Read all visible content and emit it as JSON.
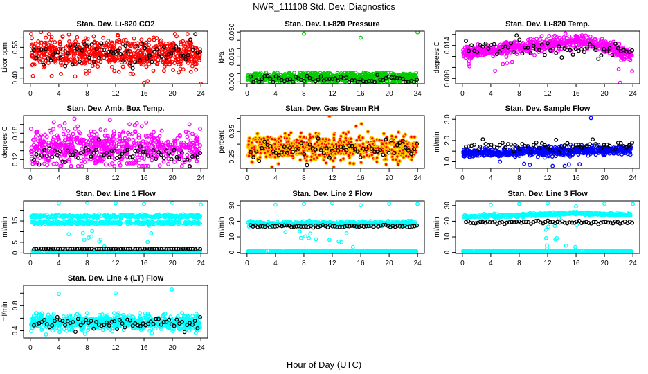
{
  "title": "NWR_111108 Std. Dev. Diagnostics",
  "xlabel": "Hour of Day (UTC)",
  "chart_data": [
    {
      "type": "scatter",
      "title": "Stan. Dev. Li-820 CO2",
      "ylabel": "Licor ppm",
      "xlim": [
        -0.96,
        24.96
      ],
      "xticks": [
        0,
        4,
        8,
        12,
        16,
        20,
        24
      ],
      "xticklabels": [
        "0",
        "4",
        "8",
        "12",
        "16",
        "20",
        "24"
      ],
      "ylim": [
        0.372,
        0.629
      ],
      "yticks": [
        0.4,
        0.45,
        0.5,
        0.55,
        0.6
      ],
      "yticklabels": [
        "0.40",
        "",
        "",
        "0.55",
        ""
      ],
      "color": "#ff0000",
      "band": {
        "mean": 0.52,
        "sd": 0.035,
        "n": 650,
        "min": 0.41,
        "max": 0.615
      },
      "hourly": {
        "mean": 0.52,
        "sd": 0.03,
        "n": 70
      },
      "outliers": [
        [
          1.5,
          0.625
        ],
        [
          3,
          0.41
        ],
        [
          4.3,
          0.42
        ],
        [
          6.3,
          0.408
        ],
        [
          7.9,
          0.42
        ],
        [
          12.3,
          0.61
        ],
        [
          16,
          0.376
        ],
        [
          16.5,
          0.385
        ],
        [
          24,
          0.372
        ]
      ]
    },
    {
      "type": "scatter",
      "title": "Stan. Dev. Li-820 Pressure",
      "ylabel": "kPa",
      "xlim": [
        -0.96,
        24.96
      ],
      "xticks": [
        0,
        4,
        8,
        12,
        16,
        20,
        24
      ],
      "xticklabels": [
        "0",
        "4",
        "8",
        "12",
        "16",
        "20",
        "24"
      ],
      "ylim": [
        -0.0011,
        0.0305
      ],
      "yticks": [
        0,
        0.005,
        0.01,
        0.015,
        0.02,
        0.025,
        0.03
      ],
      "yticklabels": [
        "0.000",
        "",
        "",
        "0.015",
        "",
        "",
        "0.030"
      ],
      "color": "#00cc00",
      "band": {
        "mean": 0.0025,
        "sd": 0.0017,
        "n": 650,
        "min": 0,
        "max": 0.0055
      },
      "hourly": {
        "mean": 0.0015,
        "sd": 0.0013,
        "n": 60,
        "min": 0,
        "max": 0.005
      },
      "outliers": [
        [
          8,
          0.029
        ],
        [
          16,
          0.0265
        ],
        [
          24,
          0.0298
        ]
      ]
    },
    {
      "type": "scatter",
      "title": "Stan. Dev. Li-820 Temp.",
      "ylabel": "degrees C",
      "xlim": [
        -0.96,
        24.96
      ],
      "xticks": [
        0,
        4,
        8,
        12,
        16,
        20,
        24
      ],
      "xticklabels": [
        "0",
        "4",
        "8",
        "12",
        "16",
        "20",
        "24"
      ],
      "ylim": [
        0.00703,
        0.0166
      ],
      "yticks": [
        0.008,
        0.01,
        0.012,
        0.014,
        0.016
      ],
      "yticklabels": [
        "0.008",
        "",
        "",
        "0.014",
        ""
      ],
      "color": "#ff00ff",
      "band": {
        "mean_by_hour": [
          0.0128,
          0.0126,
          0.0128,
          0.013,
          0.013,
          0.0132,
          0.0134,
          0.0135,
          0.0137,
          0.0138,
          0.014,
          0.0141,
          0.0142,
          0.0143,
          0.0145,
          0.0146,
          0.0148,
          0.0148,
          0.0145,
          0.014,
          0.0138,
          0.0132,
          0.0128,
          0.0125,
          0.0118
        ],
        "sd": 0.0006,
        "n": 650
      },
      "hourly": {
        "mean_by_hour": [
          0.0135,
          0.0134,
          0.0134,
          0.0133,
          0.0128,
          0.0125,
          0.0126,
          0.0132,
          0.0136,
          0.0136,
          0.0138,
          0.014,
          0.0142,
          0.0141,
          0.0143,
          0.0138,
          0.014,
          0.0143,
          0.0136,
          0.0137,
          0.0135,
          0.013,
          0.0122,
          0.0115,
          0.011
        ],
        "sd": 0.0005,
        "n": 60
      },
      "outliers": [
        [
          1,
          0.0102
        ],
        [
          4.6,
          0.0094
        ],
        [
          5.7,
          0.0106
        ],
        [
          6.3,
          0.0108
        ],
        [
          7,
          0.011
        ],
        [
          22.2,
          0.0072
        ],
        [
          22,
          0.0097
        ],
        [
          23.9,
          0.0093
        ]
      ]
    },
    {
      "type": "scatter",
      "title": "Stan. Dev. Amb. Box Temp.",
      "ylabel": "degrees C",
      "xlim": [
        -0.96,
        24.96
      ],
      "xticks": [
        0,
        4,
        8,
        12,
        16,
        20,
        24
      ],
      "xticklabels": [
        "0",
        "4",
        "8",
        "12",
        "16",
        "20",
        "24"
      ],
      "ylim": [
        0.1,
        0.22
      ],
      "yticks": [
        0.12,
        0.14,
        0.16,
        0.18,
        0.2
      ],
      "yticklabels": [
        "0.12",
        "",
        "",
        "0.18",
        ""
      ],
      "color": "#ff00ff",
      "band": {
        "mean": 0.148,
        "sd": 0.02,
        "n": 650,
        "min": 0.105,
        "max": 0.21
      },
      "hourly": {
        "mean": 0.13,
        "sd": 0.01,
        "n": 65
      },
      "outliers": [
        [
          0.1,
          0.19
        ],
        [
          3.3,
          0.205
        ],
        [
          6.2,
          0.213
        ],
        [
          11.2,
          0.21
        ],
        [
          15,
          0.203
        ]
      ]
    },
    {
      "type": "scatter",
      "title": "Stan. Dev. Gas Stream RH",
      "ylabel": "percent",
      "xlim": [
        -0.96,
        24.96
      ],
      "xticks": [
        0,
        4,
        8,
        12,
        16,
        20,
        24
      ],
      "xticklabels": [
        "0",
        "4",
        "8",
        "12",
        "16",
        "20",
        "24"
      ],
      "ylim": [
        0.205,
        0.412
      ],
      "yticks": [
        0.25,
        0.3,
        0.35,
        0.4
      ],
      "yticklabels": [
        "0.25",
        "",
        "0.35",
        ""
      ],
      "color": "#ffcc00",
      "fill": "#ff0000",
      "band": {
        "mean": 0.285,
        "sd": 0.025,
        "n": 700,
        "min": 0.22,
        "max": 0.37
      },
      "hourly": {
        "mean": 0.28,
        "sd": 0.02,
        "n": 60
      },
      "outliers": [
        [
          11.6,
          0.41
        ],
        [
          16.1,
          0.38
        ],
        [
          3.5,
          0.21
        ],
        [
          12.2,
          0.21
        ]
      ]
    },
    {
      "type": "scatter",
      "title": "Stan. Dev. Sample Flow",
      "ylabel": "ml/min",
      "xlim": [
        -0.96,
        24.96
      ],
      "xticks": [
        0,
        4,
        8,
        12,
        16,
        20,
        24
      ],
      "xticklabels": [
        "0",
        "4",
        "8",
        "12",
        "16",
        "20",
        "24"
      ],
      "ylim": [
        0.69,
        3.17
      ],
      "yticks": [
        1.0,
        1.5,
        2.0,
        2.5,
        3.0
      ],
      "yticklabels": [
        "1.0",
        "",
        "2.0",
        "",
        "3.0"
      ],
      "color": "#0000ff",
      "band": {
        "mean_by_hour": [
          1.4,
          1.42,
          1.42,
          1.44,
          1.44,
          1.44,
          1.45,
          1.45,
          1.45,
          1.46,
          1.46,
          1.47,
          1.48,
          1.48,
          1.5,
          1.5,
          1.52,
          1.52,
          1.52,
          1.53,
          1.54,
          1.55,
          1.55,
          1.56,
          1.57
        ],
        "sd": 0.1,
        "n": 700
      },
      "hourly": {
        "mean": 1.75,
        "sd": 0.12,
        "n": 60
      },
      "outliers": [
        [
          18.1,
          3.06
        ],
        [
          5.3,
          1.0
        ],
        [
          8.7,
          0.9
        ],
        [
          9.5,
          0.85
        ],
        [
          12.7,
          0.8
        ],
        [
          14.4,
          0.8
        ],
        [
          15,
          0.87
        ],
        [
          16.5,
          0.88
        ]
      ]
    },
    {
      "type": "scatter",
      "title": "Stan. Dev. Line 1 Flow",
      "ylabel": "ml/min",
      "xlim": [
        -0.96,
        24.96
      ],
      "xticks": [
        0,
        4,
        8,
        12,
        16,
        20,
        24
      ],
      "xticklabels": [
        "0",
        "4",
        "8",
        "12",
        "16",
        "20",
        "24"
      ],
      "ylim": [
        -0.2,
        24.4
      ],
      "yticks": [
        0,
        5,
        10,
        15,
        20
      ],
      "yticklabels": [
        "0",
        "5",
        "",
        "15",
        ""
      ],
      "color": "#00ffff",
      "bands": [
        {
          "mean": 17.2,
          "sd": 0.35,
          "n": 350
        },
        {
          "mean": 14.1,
          "sd": 0.35,
          "n": 350
        },
        {
          "mean": 0.8,
          "sd": 0.15,
          "n": 300
        }
      ],
      "hourly": {
        "mean": 1.9,
        "sd": 0.1,
        "n": 70
      },
      "outliers": [
        [
          4,
          23.2
        ],
        [
          8,
          23.5
        ],
        [
          12,
          23.2
        ],
        [
          16,
          22.9
        ],
        [
          20,
          23.5
        ],
        [
          24,
          22.7
        ],
        [
          5.4,
          8.8
        ],
        [
          7.4,
          9.3
        ],
        [
          7.6,
          6.2
        ],
        [
          8.2,
          7.2
        ],
        [
          8.6,
          7.7
        ],
        [
          8.7,
          10.3
        ],
        [
          9.7,
          5.4
        ],
        [
          9.9,
          6.3
        ],
        [
          10.4,
          3.1
        ],
        [
          16.5,
          5.1
        ],
        [
          17,
          9.2
        ],
        [
          16.7,
          12.8
        ]
      ]
    },
    {
      "type": "scatter",
      "title": "Stan. Dev. Line 2 Flow",
      "ylabel": "ml/min",
      "xlim": [
        -0.96,
        24.96
      ],
      "xticks": [
        0,
        4,
        8,
        12,
        16,
        20,
        24
      ],
      "xticklabels": [
        "0",
        "4",
        "8",
        "12",
        "16",
        "20",
        "24"
      ],
      "ylim": [
        -0.6,
        33
      ],
      "yticks": [
        0,
        10,
        20,
        30
      ],
      "yticklabels": [
        "0",
        "10",
        "20",
        "30"
      ],
      "color": "#00ffff",
      "bands": [
        {
          "mean": 18.5,
          "sd": 0.7,
          "n": 450
        },
        {
          "mean": 0.8,
          "sd": 0.15,
          "n": 400
        }
      ],
      "hourly": {
        "mean": 16.8,
        "sd": 0.3,
        "n": 70
      },
      "outliers": [
        [
          4,
          30.5
        ],
        [
          8,
          31
        ],
        [
          12,
          31.5
        ],
        [
          16,
          30.2
        ],
        [
          20,
          31.2
        ],
        [
          24,
          31
        ],
        [
          5.4,
          13
        ],
        [
          7.4,
          13.5
        ],
        [
          7.6,
          9.3
        ],
        [
          8.2,
          10.3
        ],
        [
          8.7,
          9.2
        ],
        [
          8.9,
          12.1
        ],
        [
          9.7,
          8.5
        ],
        [
          11.6,
          8.1
        ],
        [
          12.9,
          7
        ],
        [
          14,
          12.2
        ],
        [
          13.3,
          6.5
        ],
        [
          14.9,
          3.5
        ]
      ]
    },
    {
      "type": "scatter",
      "title": "Stan. Dev. Line 3 Flow",
      "ylabel": "ml/min",
      "xlim": [
        -0.96,
        24.96
      ],
      "xticks": [
        0,
        4,
        8,
        12,
        16,
        20,
        24
      ],
      "xticklabels": [
        "0",
        "4",
        "8",
        "12",
        "16",
        "20",
        "24"
      ],
      "ylim": [
        -0.6,
        33
      ],
      "yticks": [
        0,
        10,
        20,
        30
      ],
      "yticklabels": [
        "0",
        "10",
        "20",
        "30"
      ],
      "color": "#00ffff",
      "bands": [
        {
          "mean_by_hour": [
            23,
            23,
            23.1,
            23.2,
            23.3,
            23.3,
            23.5,
            23.6,
            23.8,
            24,
            24.2,
            24.3,
            24.5,
            24.6,
            24.8,
            25,
            25.1,
            25,
            24.8,
            24.6,
            24.5,
            24.4,
            24.3,
            24.2,
            24.2
          ],
          "sd": 0.45,
          "n": 450
        },
        {
          "mean": 0.8,
          "sd": 0.15,
          "n": 400
        }
      ],
      "hourly": {
        "mean_by_hour": [
          18,
          18.3,
          18.6,
          18.8,
          19,
          19,
          19,
          19.2,
          19.3,
          19.4,
          19.4,
          19.4,
          18,
          18.5,
          19.5,
          19,
          19.3,
          19.5,
          19.6,
          19.7,
          19.8,
          19.7,
          19.6,
          19.6,
          19.6
        ],
        "sd": 0.3,
        "n": 70
      },
      "outliers": [
        [
          4,
          30.5
        ],
        [
          8,
          31
        ],
        [
          12,
          31.5
        ],
        [
          16,
          29.5
        ],
        [
          20,
          31.2
        ],
        [
          24,
          31
        ],
        [
          11.8,
          14.5
        ],
        [
          11.8,
          9.2
        ],
        [
          13.1,
          8.4
        ],
        [
          13.3,
          9.2
        ],
        [
          13.6,
          22
        ],
        [
          14.6,
          4.4
        ],
        [
          15.9,
          3.5
        ],
        [
          11.9,
          4.5
        ],
        [
          11.9,
          2.5
        ],
        [
          12.1,
          16.5
        ],
        [
          13,
          17
        ],
        [
          16.1,
          17.5
        ]
      ]
    },
    {
      "type": "scatter",
      "title": "Stan. Dev. Line 4 (LT) Flow",
      "ylabel": "ml/min",
      "xlim": [
        -0.96,
        24.96
      ],
      "xticks": [
        0,
        4,
        8,
        12,
        16,
        20,
        24
      ],
      "xticklabels": [
        "0",
        "4",
        "8",
        "12",
        "16",
        "20",
        "24"
      ],
      "ylim": [
        0.283,
        1.125
      ],
      "yticks": [
        0.4,
        0.6,
        0.8,
        1.0
      ],
      "yticklabels": [
        "0.4",
        "",
        "0.8",
        ""
      ],
      "color": "#00ffff",
      "band": {
        "mean": 0.53,
        "sd": 0.06,
        "n": 650,
        "min": 0.36,
        "max": 0.68
      },
      "hourly": {
        "mean": 0.52,
        "sd": 0.05,
        "n": 65
      },
      "outliers": [
        [
          4,
          0.99
        ],
        [
          12,
          1.0
        ],
        [
          19.9,
          1.06
        ],
        [
          2.2,
          0.34
        ],
        [
          7.7,
          0.35
        ]
      ]
    }
  ]
}
